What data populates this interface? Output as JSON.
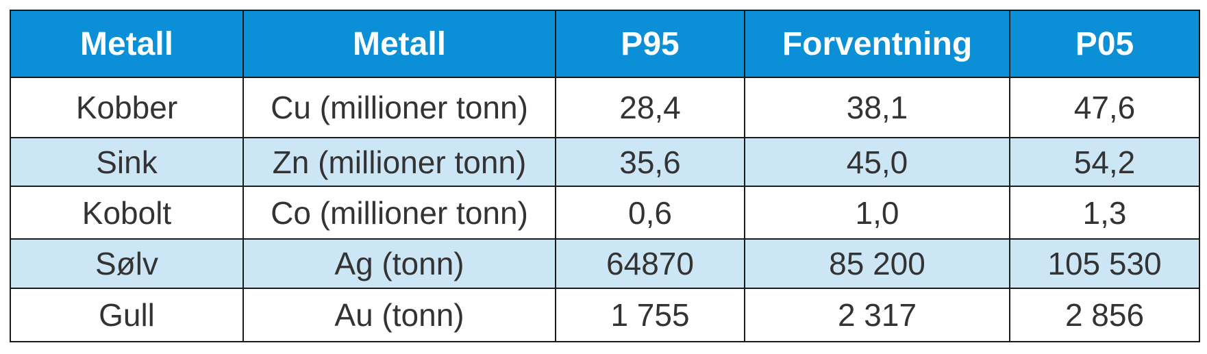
{
  "table": {
    "headers": [
      "Metall",
      "Metall",
      "P95",
      "Forventning",
      "P05"
    ],
    "rows": [
      [
        "Kobber",
        "Cu (millioner tonn)",
        "28,4",
        "38,1",
        "47,6"
      ],
      [
        "Sink",
        "Zn (millioner tonn)",
        "35,6",
        "45,0",
        "54,2"
      ],
      [
        "Kobolt",
        "Co (millioner tonn)",
        "0,6",
        "1,0",
        "1,3"
      ],
      [
        "Sølv",
        "Ag (tonn)",
        "64870",
        "85 200",
        "105 530"
      ],
      [
        "Gull",
        "Au (tonn)",
        "1 755",
        "2 317",
        "2 856"
      ]
    ]
  },
  "colors": {
    "header_bg": "#0b8fd6",
    "header_text": "#ffffff",
    "stripe_bg": "#cce6f5",
    "row_bg": "#ffffff",
    "border": "#1a1a1a",
    "cell_text": "#333333"
  }
}
